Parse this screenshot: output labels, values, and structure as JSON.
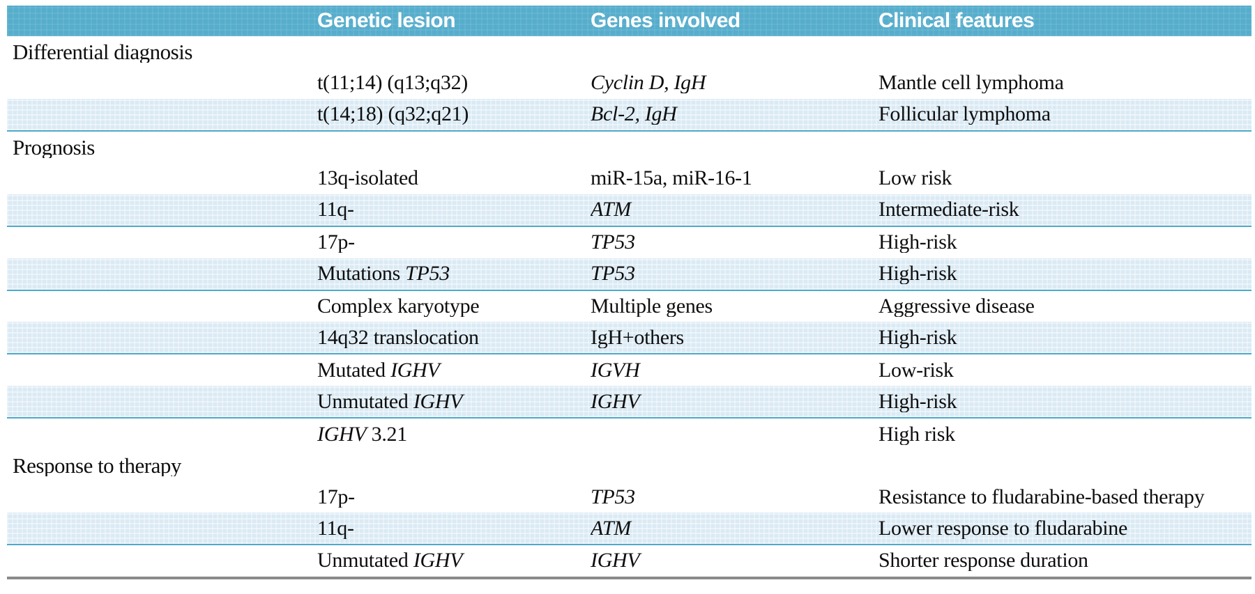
{
  "table": {
    "columns": [
      "",
      "Genetic lesion",
      "Genes involved",
      "Clinical features"
    ],
    "colors": {
      "header_bg": "#56adcc",
      "header_text": "#ffffff",
      "stripe_bg": "#daeaf4",
      "stripe_rule": "#4fa9c9",
      "bottom_rule": "#8a8a8a",
      "body_text": "#0e0e0e"
    },
    "sections": [
      {
        "title": "Differential diagnosis",
        "rows": [
          {
            "striped": false,
            "lesion": [
              [
                "t(11;14) (q13;q32)",
                false
              ]
            ],
            "genes": [
              [
                "Cyclin D, IgH",
                true
              ]
            ],
            "features": [
              [
                "Mantle cell lymphoma",
                false
              ]
            ]
          },
          {
            "striped": true,
            "lesion": [
              [
                "t(14;18) (q32;q21)",
                false
              ]
            ],
            "genes": [
              [
                "Bcl-2, IgH",
                true
              ]
            ],
            "features": [
              [
                "Follicular lymphoma",
                false
              ]
            ]
          }
        ]
      },
      {
        "title": "Prognosis",
        "rows": [
          {
            "striped": false,
            "lesion": [
              [
                "13q-isolated",
                false
              ]
            ],
            "genes": [
              [
                "miR-15a, miR-16-1",
                false
              ]
            ],
            "features": [
              [
                "Low risk",
                false
              ]
            ]
          },
          {
            "striped": true,
            "lesion": [
              [
                "11q-",
                false
              ]
            ],
            "genes": [
              [
                "ATM",
                true
              ]
            ],
            "features": [
              [
                "Intermediate-risk",
                false
              ]
            ]
          },
          {
            "striped": false,
            "lesion": [
              [
                "17p-",
                false
              ]
            ],
            "genes": [
              [
                "TP53",
                true
              ]
            ],
            "features": [
              [
                "High-risk",
                false
              ]
            ]
          },
          {
            "striped": true,
            "lesion": [
              [
                "Mutations ",
                false
              ],
              [
                "TP53",
                true
              ]
            ],
            "genes": [
              [
                "TP53",
                true
              ]
            ],
            "features": [
              [
                "High-risk",
                false
              ]
            ]
          },
          {
            "striped": false,
            "lesion": [
              [
                "Complex karyotype",
                false
              ]
            ],
            "genes": [
              [
                "Multiple genes",
                false
              ]
            ],
            "features": [
              [
                "Aggressive disease",
                false
              ]
            ]
          },
          {
            "striped": true,
            "lesion": [
              [
                "14q32 translocation",
                false
              ]
            ],
            "genes": [
              [
                "IgH+others",
                false
              ]
            ],
            "features": [
              [
                "High-risk",
                false
              ]
            ]
          },
          {
            "striped": false,
            "lesion": [
              [
                "Mutated ",
                false
              ],
              [
                "IGHV",
                true
              ]
            ],
            "genes": [
              [
                "IGVH",
                true
              ]
            ],
            "features": [
              [
                "Low-risk",
                false
              ]
            ]
          },
          {
            "striped": true,
            "lesion": [
              [
                "Unmutated ",
                false
              ],
              [
                "IGHV",
                true
              ]
            ],
            "genes": [
              [
                "IGHV",
                true
              ]
            ],
            "features": [
              [
                "High-risk",
                false
              ]
            ]
          },
          {
            "striped": false,
            "lesion": [
              [
                "IGHV",
                true
              ],
              [
                " 3.21",
                false
              ]
            ],
            "genes": [],
            "features": [
              [
                "High risk",
                false
              ]
            ]
          }
        ]
      },
      {
        "title": "Response to therapy",
        "rows": [
          {
            "striped": false,
            "lesion": [
              [
                "17p-",
                false
              ]
            ],
            "genes": [
              [
                "TP53",
                true
              ]
            ],
            "features": [
              [
                "Resistance to fludarabine-based therapy",
                false
              ]
            ]
          },
          {
            "striped": true,
            "lesion": [
              [
                "11q-",
                false
              ]
            ],
            "genes": [
              [
                "ATM",
                true
              ]
            ],
            "features": [
              [
                "Lower response to fludarabine",
                false
              ]
            ]
          },
          {
            "striped": false,
            "lesion": [
              [
                "Unmutated ",
                false
              ],
              [
                "IGHV",
                true
              ]
            ],
            "genes": [
              [
                "IGHV",
                true
              ]
            ],
            "features": [
              [
                "Shorter response duration",
                false
              ]
            ]
          }
        ]
      }
    ]
  }
}
